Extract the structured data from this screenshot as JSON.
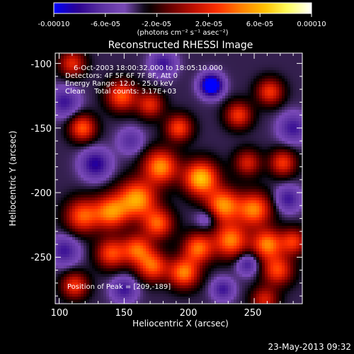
{
  "chart_data": {
    "type": "heatmap",
    "title": "Reconstructed RHESSI Image",
    "xlabel": "Heliocentric X (arcsec)",
    "ylabel": "Heliocentric Y (arcsec)",
    "xlim": [
      97,
      287
    ],
    "ylim": [
      -286,
      -92
    ],
    "x_ticks": [
      100,
      150,
      200,
      250
    ],
    "y_ticks": [
      -100,
      -150,
      -200,
      -250
    ],
    "colorbar": {
      "range": [
        -0.0001,
        0.0001
      ],
      "tick_labels": [
        "-0.00010",
        "-6.0e-05",
        "-2.0e-05",
        "2.0e-05",
        "6.0e-05",
        "0.00010"
      ],
      "tick_values": [
        -0.0001,
        -6e-05,
        -2e-05,
        2e-05,
        6e-05,
        0.0001
      ],
      "units_label": "(photons cm⁻² s⁻¹ asec⁻²)"
    },
    "annotations": {
      "time": "6-Oct-2003 18:00:32.000 to 18:05:10.000",
      "detectors": "Detectors: 4F 5F 6F 7F 8F, Att 0",
      "energy": "Energy Range: 12.0 - 25.0 keV",
      "clean": "Clean    Total counts: 3.17E+03",
      "peak": "Position of Peak = [209,-189]"
    },
    "footer_timestamp": "23-May-2013 09:32",
    "colormap": [
      "#0000ff",
      "#2a0090",
      "#5a30a0",
      "#7a4ab8",
      "#000000",
      "#6a0000",
      "#c01000",
      "#ff3000",
      "#ff8000",
      "#ffc000",
      "#ffff60",
      "#ffffff"
    ],
    "sources": [
      {
        "x": 209,
        "y": -189,
        "amp": 0.0001,
        "w": 9
      },
      {
        "x": 178,
        "y": -180,
        "amp": 8.5e-05,
        "w": 9
      },
      {
        "x": 160,
        "y": -205,
        "amp": 9e-05,
        "w": 10
      },
      {
        "x": 140,
        "y": -215,
        "amp": 8e-05,
        "w": 9
      },
      {
        "x": 118,
        "y": -218,
        "amp": 7e-05,
        "w": 9
      },
      {
        "x": 226,
        "y": -210,
        "amp": 8.5e-05,
        "w": 9
      },
      {
        "x": 232,
        "y": -237,
        "amp": 8e-05,
        "w": 9
      },
      {
        "x": 250,
        "y": -213,
        "amp": 8e-05,
        "w": 9
      },
      {
        "x": 260,
        "y": -240,
        "amp": 8e-05,
        "w": 8
      },
      {
        "x": 268,
        "y": -260,
        "amp": 6.5e-05,
        "w": 8
      },
      {
        "x": 207,
        "y": -243,
        "amp": 7.5e-05,
        "w": 8
      },
      {
        "x": 196,
        "y": -262,
        "amp": 8e-05,
        "w": 8
      },
      {
        "x": 172,
        "y": -257,
        "amp": 7e-05,
        "w": 8
      },
      {
        "x": 160,
        "y": -244,
        "amp": 7e-05,
        "w": 8
      },
      {
        "x": 140,
        "y": -247,
        "amp": 6.5e-05,
        "w": 8
      },
      {
        "x": 176,
        "y": -224,
        "amp": 7e-05,
        "w": 8
      },
      {
        "x": 118,
        "y": -150,
        "amp": 7e-05,
        "w": 7
      },
      {
        "x": 148,
        "y": -125,
        "amp": 7e-05,
        "w": 8
      },
      {
        "x": 170,
        "y": -132,
        "amp": 5.5e-05,
        "w": 7
      },
      {
        "x": 192,
        "y": -150,
        "amp": 6.5e-05,
        "w": 7
      },
      {
        "x": 238,
        "y": -140,
        "amp": 6e-05,
        "w": 7
      },
      {
        "x": 262,
        "y": -122,
        "amp": 6e-05,
        "w": 7
      },
      {
        "x": 272,
        "y": -177,
        "amp": 6e-05,
        "w": 7
      },
      {
        "x": 245,
        "y": -177,
        "amp": 5e-05,
        "w": 7
      },
      {
        "x": 110,
        "y": -100,
        "amp": 5.5e-05,
        "w": 7
      },
      {
        "x": 112,
        "y": -272,
        "amp": 6e-05,
        "w": 7
      },
      {
        "x": 258,
        "y": -283,
        "amp": 5e-05,
        "w": 7
      },
      {
        "x": 280,
        "y": -238,
        "amp": 6e-05,
        "w": 7
      },
      {
        "x": 217,
        "y": -117,
        "amp": -9e-05,
        "w": 6
      },
      {
        "x": 180,
        "y": -100,
        "amp": -4e-05,
        "w": 7
      },
      {
        "x": 128,
        "y": -178,
        "amp": -5e-05,
        "w": 8
      },
      {
        "x": 104,
        "y": -130,
        "amp": -4e-05,
        "w": 8
      },
      {
        "x": 104,
        "y": -245,
        "amp": -4e-05,
        "w": 8
      },
      {
        "x": 155,
        "y": -160,
        "amp": -3e-05,
        "w": 7
      },
      {
        "x": 214,
        "y": -220,
        "amp": -3e-05,
        "w": 6
      },
      {
        "x": 245,
        "y": -255,
        "amp": -4e-05,
        "w": 6
      },
      {
        "x": 276,
        "y": -205,
        "amp": -4e-05,
        "w": 7
      },
      {
        "x": 280,
        "y": -150,
        "amp": -4e-05,
        "w": 8
      },
      {
        "x": 226,
        "y": -275,
        "amp": -4e-05,
        "w": 6
      },
      {
        "x": 150,
        "y": -275,
        "amp": -4e-05,
        "w": 7
      }
    ]
  }
}
